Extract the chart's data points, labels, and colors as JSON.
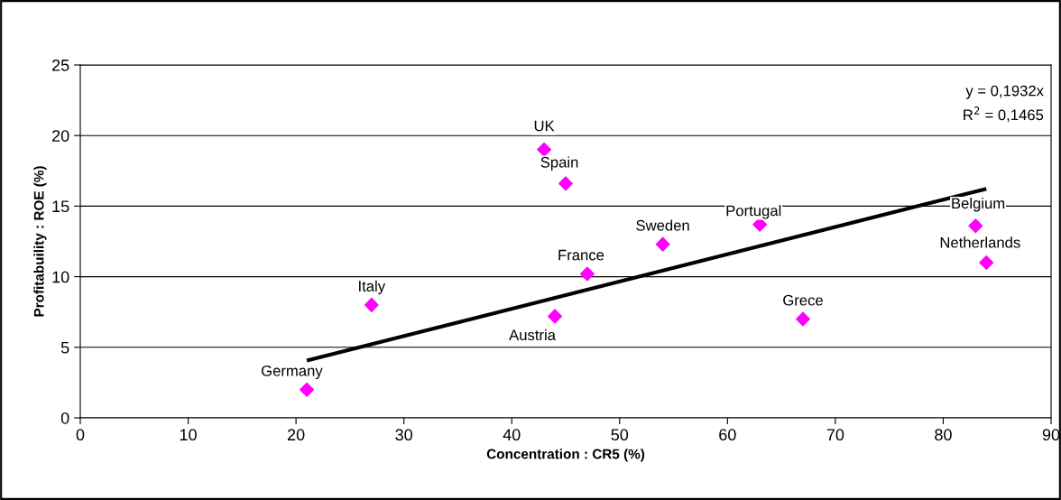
{
  "chart_data": {
    "type": "scatter",
    "xlabel": "Concentration : CR5 (%)",
    "ylabel": "Profitabuility : ROE (%)",
    "xlim": [
      0,
      90
    ],
    "xticks": [
      0,
      10,
      20,
      30,
      40,
      50,
      60,
      70,
      80,
      90
    ],
    "ylim": [
      0,
      25
    ],
    "yticks": [
      0,
      5,
      10,
      15,
      20,
      25
    ],
    "grid": "y",
    "marker": "diamond",
    "legend": false,
    "series": [
      {
        "color": "#ff00ff",
        "x": [
          21,
          27,
          44,
          47,
          43,
          45,
          54,
          63,
          67,
          83,
          84
        ],
        "values": [
          2,
          8,
          7.2,
          10.2,
          19,
          16.6,
          12.3,
          13.7,
          7,
          13.6,
          11
        ]
      },
      {
        "type": "line",
        "color": "#000000",
        "marker": "none",
        "x": [
          21,
          84
        ],
        "values": [
          4.06,
          16.23
        ]
      }
    ],
    "annotations": [
      {
        "text": "Germany",
        "x": 21,
        "y": 2
      },
      {
        "text": "Italy",
        "x": 27,
        "y": 8
      },
      {
        "text": "Austria",
        "x": 44,
        "y": 7.2
      },
      {
        "text": "France",
        "x": 47,
        "y": 10.2
      },
      {
        "text": "UK",
        "x": 43,
        "y": 19
      },
      {
        "text": "Spain",
        "x": 45,
        "y": 16.6
      },
      {
        "text": "Sweden",
        "x": 54,
        "y": 12.3
      },
      {
        "text": "Portugal",
        "x": 63,
        "y": 13.7
      },
      {
        "text": "Grece",
        "x": 67,
        "y": 7
      },
      {
        "text": "Belgium",
        "x": 83,
        "y": 13.6
      },
      {
        "text": "Netherlands",
        "x": 84,
        "y": 11
      },
      "y = 0,1932x",
      "R$^{2}$ = 0,1465"
    ]
  }
}
